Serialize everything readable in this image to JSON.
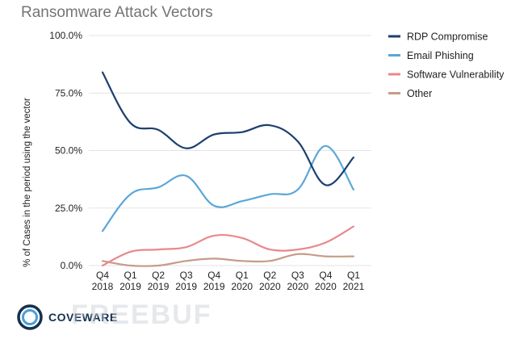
{
  "chart_data": {
    "type": "line",
    "title": "Ransomware Attack Vectors",
    "ylabel": "% of Cases in the period using the vector",
    "xlabel": "",
    "ylim": [
      0,
      100
    ],
    "yticks": [
      0,
      25,
      50,
      75,
      100
    ],
    "ytick_labels": [
      "0.0%",
      "25.0%",
      "50.0%",
      "75.0%",
      "100.0%"
    ],
    "categories": [
      [
        "Q4",
        "2018"
      ],
      [
        "Q1",
        "2019"
      ],
      [
        "Q2",
        "2019"
      ],
      [
        "Q3",
        "2019"
      ],
      [
        "Q4",
        "2019"
      ],
      [
        "Q1",
        "2020"
      ],
      [
        "Q2",
        "2020"
      ],
      [
        "Q3",
        "2020"
      ],
      [
        "Q4",
        "2020"
      ],
      [
        "Q1",
        "2021"
      ]
    ],
    "grid": true,
    "legend_position": "right",
    "series": [
      {
        "name": "RDP Compromise",
        "color": "#1c3f6e",
        "values": [
          84,
          62,
          59,
          51,
          57,
          58,
          61,
          54,
          35,
          47
        ]
      },
      {
        "name": "Email Phishing",
        "color": "#5aa7d8",
        "values": [
          15,
          31,
          34,
          39,
          26,
          28,
          31,
          33,
          52,
          33
        ]
      },
      {
        "name": "Software Vulnerability",
        "color": "#e9888b",
        "values": [
          0,
          6,
          7,
          8,
          13,
          12,
          7,
          7,
          10,
          17
        ]
      },
      {
        "name": "Other",
        "color": "#c79b86",
        "values": [
          2,
          0,
          0,
          2,
          3,
          2,
          2,
          5,
          4,
          4
        ]
      }
    ]
  },
  "branding": {
    "logo_text": "COVEWARE",
    "logo_icon": "coveware-ring-icon",
    "logo_color": "#14324f",
    "watermark_text": "FREEBUF"
  }
}
